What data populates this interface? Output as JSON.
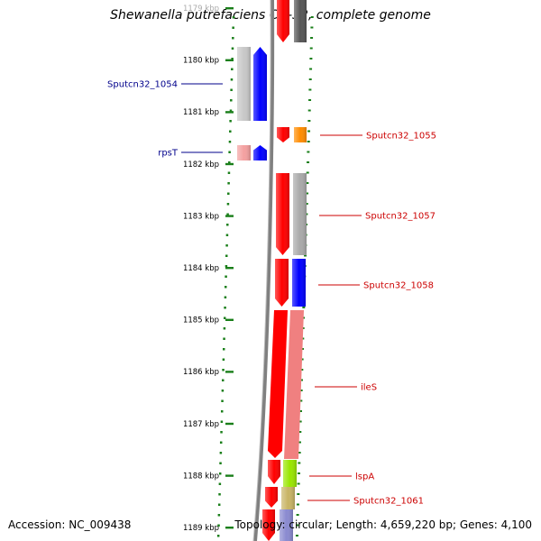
{
  "title": "Shewanella putrefaciens CN-32, complete genome",
  "accession": "Accession: NC_009438",
  "topology": "Topology: circular; Length: 4,659,220 bp; Genes: 4,100",
  "ticks": [
    {
      "label": "1179 kbp",
      "kbp": 1179
    },
    {
      "label": "1180 kbp",
      "kbp": 1180
    },
    {
      "label": "1181 kbp",
      "kbp": 1181
    },
    {
      "label": "1182 kbp",
      "kbp": 1182
    },
    {
      "label": "1183 kbp",
      "kbp": 1183
    },
    {
      "label": "1184 kbp",
      "kbp": 1184
    },
    {
      "label": "1185 kbp",
      "kbp": 1185
    },
    {
      "label": "1186 kbp",
      "kbp": 1186
    },
    {
      "label": "1187 kbp",
      "kbp": 1187
    },
    {
      "label": "1188 kbp",
      "kbp": 1188
    },
    {
      "label": "1189 kbp",
      "kbp": 1189
    }
  ],
  "left_labels": [
    {
      "name": "Sputcn32_1054",
      "color": "#00008b"
    },
    {
      "name": "rpsT",
      "color": "#00008b"
    }
  ],
  "right_labels": [
    {
      "name": "Sputcn32_1055",
      "color": "#cc0000"
    },
    {
      "name": "Sputcn32_1057",
      "color": "#cc0000"
    },
    {
      "name": "Sputcn32_1058",
      "color": "#cc0000"
    },
    {
      "name": "ileS",
      "color": "#cc0000"
    },
    {
      "name": "lspA",
      "color": "#cc0000"
    },
    {
      "name": "Sputcn32_1061",
      "color": "#cc0000"
    }
  ],
  "colors": {
    "tick_green": "#1a7f1a",
    "backbone_gray": "#808080",
    "feature_red": "#ff0000",
    "feature_blue": "#0000ff",
    "feature_orange": "#ff8c00",
    "feature_pink": "#f08080",
    "feature_gray": "#a9a9a9",
    "feature_lightgray": "#c8c8c8",
    "feature_darkgray": "#555555",
    "feature_lime": "#99e600",
    "feature_khaki": "#c8b464",
    "feature_purple": "#8a8ad0",
    "feature_lightred": "#f4a0a0"
  }
}
